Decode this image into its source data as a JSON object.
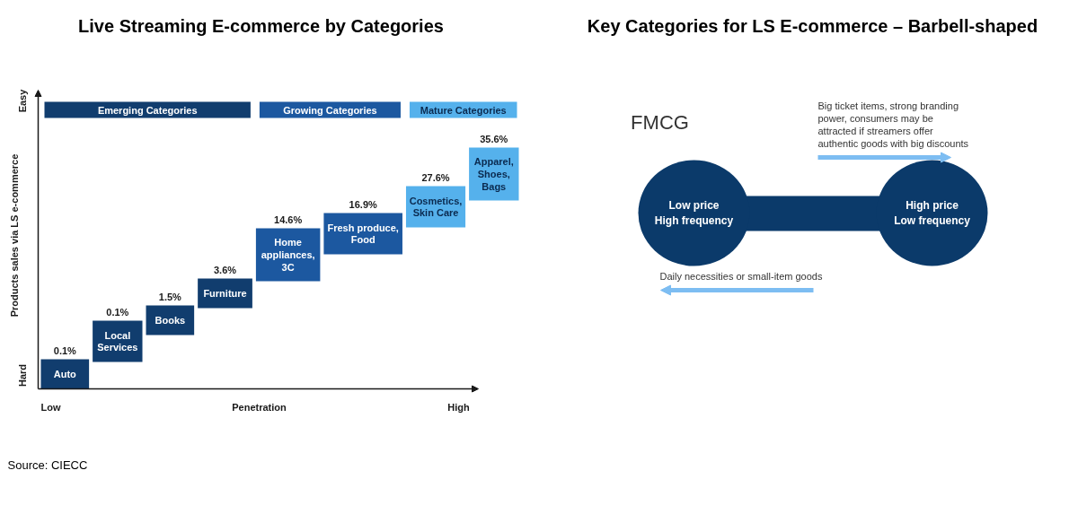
{
  "chart_data": [
    {
      "type": "other",
      "title": "Live Streaming E-commerce by Categories",
      "xlabel": "Penetration",
      "ylabel": "Products sales via LS e-commerce",
      "categories": [
        "Auto",
        "Local\nServices",
        "Books",
        "Furniture",
        "Home\nappliances,\n3C",
        "Fresh produce,\nFood",
        "Cosmetics,\nSkin Care",
        "Apparel,\nShoes,\nBags"
      ],
      "series": [
        {
          "name": "Emerging Categories",
          "colors": [
            "#113d6e",
            "#113d6e",
            "#113d6e",
            "#113d6e",
            null,
            null,
            null,
            null
          ],
          "values": [
            0.1,
            0.1,
            1.5,
            3.6,
            null,
            null,
            null,
            null
          ],
          "value_labels": [
            "0.1%",
            "0.1%",
            "1.5%",
            "3.6%",
            null,
            null,
            null,
            null
          ]
        },
        {
          "name": "Growing Categories",
          "colors": [
            null,
            null,
            null,
            null,
            "#1c58a0",
            "#1c58a0",
            null,
            null
          ],
          "values": [
            null,
            null,
            null,
            null,
            14.6,
            16.9,
            null,
            null
          ],
          "value_labels": [
            null,
            null,
            null,
            null,
            "14.6%",
            "16.9%",
            null,
            null
          ]
        },
        {
          "name": "Mature Categories",
          "colors": [
            null,
            null,
            null,
            null,
            null,
            null,
            "#55b1ec",
            "#55b1ec"
          ],
          "values": [
            null,
            null,
            null,
            null,
            null,
            null,
            27.6,
            35.6
          ],
          "value_labels": [
            null,
            null,
            null,
            null,
            null,
            null,
            "27.6%",
            "35.6%"
          ]
        }
      ],
      "annotations": [
        "Low",
        "High",
        "Hard",
        "Easy",
        "Source: CIECC"
      ]
    },
    {
      "type": "other",
      "title": "Key Categories for LS E-commerce – Barbell-shaped",
      "categories": [
        "Low price\nHigh frequency",
        "High price\nLow frequency"
      ],
      "colors": [
        "#0b3a6a",
        "#0b3a6a"
      ],
      "annotations": [
        "Big ticket items, strong branding\npower, consumers may be\nattracted if streamers offer\nauthentic goods with big discounts",
        "Daily necessities or small-item goods",
        "FMCG"
      ]
    }
  ]
}
